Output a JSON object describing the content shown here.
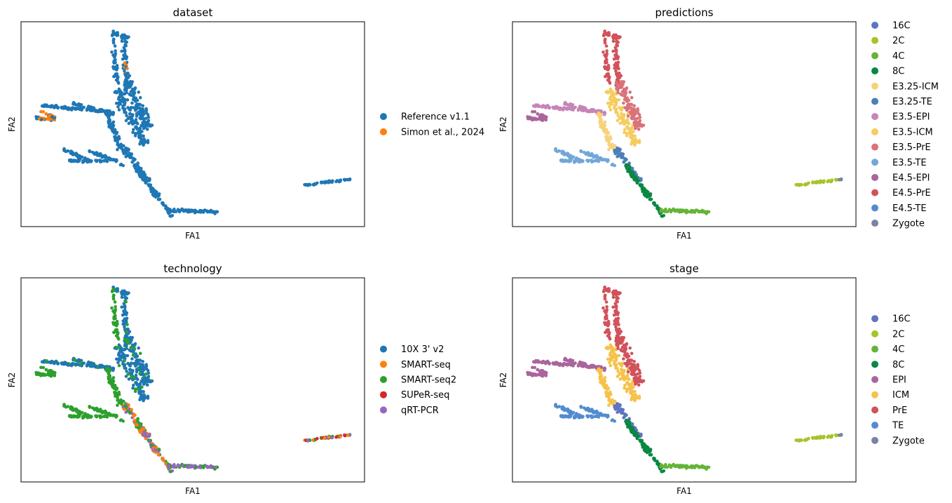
{
  "chart_data": [
    {
      "type": "scatter",
      "title": "dataset",
      "xlabel": "FA1",
      "ylabel": "FA2",
      "legend": [
        {
          "label": "Reference v1.1",
          "color": "#1f77b4"
        },
        {
          "label": "Simon et al., 2024",
          "color": "#ff7f0e"
        }
      ]
    },
    {
      "type": "scatter",
      "title": "predictions",
      "xlabel": "FA1",
      "ylabel": "FA2",
      "legend": [
        {
          "label": "16C",
          "color": "#5f75bf"
        },
        {
          "label": "2C",
          "color": "#a6c42a"
        },
        {
          "label": "4C",
          "color": "#65b437"
        },
        {
          "label": "8C",
          "color": "#0a8743"
        },
        {
          "label": "E3.25-ICM",
          "color": "#f6d27a"
        },
        {
          "label": "E3.25-TE",
          "color": "#4d7fb8"
        },
        {
          "label": "E3.5-EPI",
          "color": "#c685b7"
        },
        {
          "label": "E3.5-ICM",
          "color": "#f6cc5e"
        },
        {
          "label": "E3.5-PrE",
          "color": "#d9737a"
        },
        {
          "label": "E3.5-TE",
          "color": "#73a6d8"
        },
        {
          "label": "E4.5-EPI",
          "color": "#a9659c"
        },
        {
          "label": "E4.5-PrE",
          "color": "#d1525b"
        },
        {
          "label": "E4.5-TE",
          "color": "#518cd0"
        },
        {
          "label": "Zygote",
          "color": "#7b82a3"
        }
      ]
    },
    {
      "type": "scatter",
      "title": "technology",
      "xlabel": "FA1",
      "ylabel": "FA2",
      "legend": [
        {
          "label": "10X 3' v2",
          "color": "#1f77b4"
        },
        {
          "label": "SMART-seq",
          "color": "#ff7f0e"
        },
        {
          "label": "SMART-seq2",
          "color": "#2ca02c"
        },
        {
          "label": "SUPeR-seq",
          "color": "#d62728"
        },
        {
          "label": "qRT-PCR",
          "color": "#9467bd"
        }
      ]
    },
    {
      "type": "scatter",
      "title": "stage",
      "xlabel": "FA1",
      "ylabel": "FA2",
      "legend": [
        {
          "label": "16C",
          "color": "#5f75bf"
        },
        {
          "label": "2C",
          "color": "#a6c42a"
        },
        {
          "label": "4C",
          "color": "#65b437"
        },
        {
          "label": "8C",
          "color": "#0a8743"
        },
        {
          "label": "EPI",
          "color": "#a9659c"
        },
        {
          "label": "ICM",
          "color": "#f6c24a"
        },
        {
          "label": "PrE",
          "color": "#d1525b"
        },
        {
          "label": "TE",
          "color": "#518cd0"
        },
        {
          "label": "Zygote",
          "color": "#7b82a3"
        }
      ]
    }
  ]
}
